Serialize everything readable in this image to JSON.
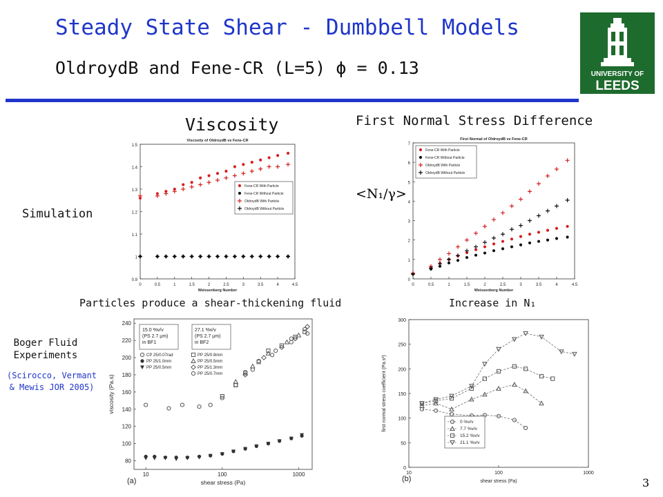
{
  "slide": {
    "title": "Steady State Shear - Dumbbell Models",
    "subtitle": "OldroydB and Fene-CR (L=5) ϕ = 0.13",
    "viscosity_label": "Viscosity",
    "n1_label": "First Normal Stress Difference",
    "simulation_label": "Simulation",
    "n1_axis_label": "<N₁/γ>",
    "shear_thickening_note": "Particles produce a shear-thickening fluid",
    "increase_note": "Increase in N₁",
    "boger_label": "Boger Fluid Experiments",
    "citation": "(Scirocco, Vermant & Mewis JOR 2005)",
    "slide_number": "3",
    "logo_text_1": "UNIVERSITY OF",
    "logo_text_2": "LEEDS"
  },
  "colors": {
    "title": "#1f35c9",
    "red": "#d42020",
    "black": "#111111",
    "logo": "#1e6b2e"
  },
  "chart_data": [
    {
      "id": "viscosity-sim",
      "type": "scatter",
      "title": "Viscosity of OldroydB vs Fene-CR",
      "xlabel": "Weissenberg Number",
      "ylabel": "",
      "xlim": [
        0,
        4.5
      ],
      "ylim": [
        0.9,
        1.5
      ],
      "xticks": [
        "0",
        "0.5",
        "1",
        "1.5",
        "2",
        "2.5",
        "3",
        "3.5",
        "4",
        "4.5"
      ],
      "yticks": [
        "0.9",
        "1",
        "1.1",
        "1.2",
        "1.3",
        "1.4",
        "1.5"
      ],
      "legend_position": "right",
      "x": [
        0,
        0.5,
        0.75,
        1.0,
        1.25,
        1.5,
        1.75,
        2.0,
        2.25,
        2.5,
        2.75,
        3.0,
        3.25,
        3.5,
        3.75,
        4.0,
        4.3
      ],
      "series": [
        {
          "name": "Fene-CR With Particle",
          "marker": "dot",
          "color": "#d42020",
          "values": [
            1.26,
            1.28,
            1.29,
            1.3,
            1.32,
            1.33,
            1.35,
            1.36,
            1.37,
            1.38,
            1.4,
            1.41,
            1.42,
            1.43,
            1.44,
            1.45,
            1.46
          ]
        },
        {
          "name": "Fene-CR Without Particle",
          "marker": "dot",
          "color": "#111111",
          "values": [
            1.0,
            1.0,
            1.0,
            1.0,
            1.0,
            1.0,
            1.0,
            1.0,
            1.0,
            1.0,
            1.0,
            1.0,
            1.0,
            1.0,
            1.0,
            1.0,
            1.0
          ]
        },
        {
          "name": "OldroydB With Particle",
          "marker": "plus",
          "color": "#d42020",
          "values": [
            1.27,
            1.27,
            1.28,
            1.29,
            1.3,
            1.31,
            1.32,
            1.33,
            1.34,
            1.35,
            1.36,
            1.37,
            1.38,
            1.39,
            1.4,
            1.4,
            1.41
          ]
        },
        {
          "name": "OldroydB Without Particle",
          "marker": "plus",
          "color": "#111111",
          "values": [
            1.0,
            1.0,
            1.0,
            1.0,
            1.0,
            1.0,
            1.0,
            1.0,
            1.0,
            1.0,
            1.0,
            1.0,
            1.0,
            1.0,
            1.0,
            1.0,
            1.0
          ]
        }
      ]
    },
    {
      "id": "n1-sim",
      "type": "scatter",
      "title": "First Normal of OldroydB vs Fene-CR",
      "xlabel": "Weissenberg Number",
      "ylabel": "",
      "xlim": [
        0,
        4.5
      ],
      "ylim": [
        0,
        7
      ],
      "xticks": [
        "0",
        "0.5",
        "1",
        "1.5",
        "2",
        "2.5",
        "3",
        "3.5",
        "4",
        "4.5"
      ],
      "yticks": [
        "0",
        "1",
        "2",
        "3",
        "4",
        "5",
        "6",
        "7"
      ],
      "legend_position": "top-left",
      "x": [
        0,
        0.5,
        0.75,
        1.0,
        1.25,
        1.5,
        1.75,
        2.0,
        2.25,
        2.5,
        2.75,
        3.0,
        3.25,
        3.5,
        3.75,
        4.0,
        4.3
      ],
      "series": [
        {
          "name": "Fene-CR With Particle",
          "marker": "dot",
          "color": "#d42020",
          "values": [
            0.25,
            0.6,
            0.8,
            1.0,
            1.18,
            1.35,
            1.5,
            1.65,
            1.8,
            1.93,
            2.05,
            2.18,
            2.3,
            2.4,
            2.5,
            2.6,
            2.7
          ]
        },
        {
          "name": "Fene-CR Without Particle",
          "marker": "dot",
          "color": "#111111",
          "values": [
            0.25,
            0.5,
            0.65,
            0.82,
            0.95,
            1.1,
            1.22,
            1.33,
            1.45,
            1.55,
            1.65,
            1.75,
            1.85,
            1.93,
            2.0,
            2.08,
            2.15
          ]
        },
        {
          "name": "OldroydB With Particle",
          "marker": "plus",
          "color": "#d42020",
          "values": [
            0.3,
            0.65,
            1.0,
            1.3,
            1.65,
            2.0,
            2.35,
            2.7,
            3.05,
            3.4,
            3.75,
            4.1,
            4.5,
            4.9,
            5.3,
            5.65,
            6.1
          ]
        },
        {
          "name": "OldroydB Without Particle",
          "marker": "plus",
          "color": "#111111",
          "values": [
            0.25,
            0.55,
            0.78,
            1.0,
            1.2,
            1.45,
            1.65,
            1.88,
            2.1,
            2.3,
            2.55,
            2.75,
            3.0,
            3.25,
            3.5,
            3.75,
            4.05
          ]
        }
      ]
    },
    {
      "id": "viscosity-exp",
      "type": "scatter",
      "panel": "(a)",
      "xlabel": "shear stress (Pa)",
      "ylabel": "viscosity (Pa.s)",
      "xscale": "log",
      "xlim": [
        7,
        1500
      ],
      "ylim": [
        70,
        245
      ],
      "xticks": [
        "10",
        "100",
        "1000"
      ],
      "yticks": [
        "80",
        "100",
        "120",
        "140",
        "160",
        "180",
        "200",
        "220",
        "240"
      ],
      "legend_box_1": [
        "15.0 %v/v",
        "(PS 2.7 μm)",
        "in BF1"
      ],
      "legend_box_2": [
        "27.1 %v/v",
        "(PS 2.7 μm)",
        "in BF2"
      ],
      "legend_position": "top-left",
      "series": [
        {
          "name": "CP 25/0.07rad",
          "marker": "circle-open",
          "x": [
            10,
            20,
            30,
            50,
            70,
            100,
            150,
            200,
            300,
            500,
            800,
            1200
          ],
          "values": [
            145,
            141,
            145,
            143,
            145,
            153,
            168,
            183,
            196,
            208,
            222,
            233
          ]
        },
        {
          "name": "PP 25/1.0mm",
          "marker": "circle-filled",
          "x": [
            10,
            13,
            18,
            25,
            35,
            50,
            70,
            100,
            140,
            200,
            280,
            400,
            560,
            800,
            1100
          ],
          "values": [
            85,
            85,
            84,
            84,
            84,
            85,
            86,
            88,
            91,
            94,
            97,
            100,
            103,
            106,
            109
          ]
        },
        {
          "name": "PP 25/0.5mm",
          "marker": "triangle-down",
          "x": [
            10,
            13,
            18,
            25,
            35,
            50,
            70,
            100,
            140,
            200,
            280,
            400,
            560,
            800,
            1100
          ],
          "values": [
            83,
            83,
            83,
            82,
            83,
            84,
            86,
            88,
            91,
            94,
            97,
            100,
            103,
            106,
            110
          ]
        },
        {
          "name": "PP 25/0.9mm",
          "marker": "square-open",
          "x": [
            100,
            150,
            200,
            300,
            400,
            600,
            900,
            1200
          ],
          "values": [
            155,
            168,
            182,
            195,
            208,
            214,
            224,
            230
          ]
        },
        {
          "name": "PP 25/0.5mm",
          "marker": "triangle-open",
          "x": [
            150,
            250,
            400,
            700,
            1000
          ],
          "values": [
            172,
            190,
            205,
            218,
            226
          ]
        },
        {
          "name": "PP 25/1.3mm",
          "marker": "diamond-open",
          "x": [
            200,
            350,
            600,
            900,
            1300
          ],
          "values": [
            180,
            200,
            212,
            222,
            236
          ]
        },
        {
          "name": "PP 25/0.7mm",
          "marker": "circle-open-2",
          "x": [
            250,
            450,
            800,
            1300
          ],
          "values": [
            186,
            203,
            218,
            228
          ]
        }
      ]
    },
    {
      "id": "n1-exp",
      "type": "line",
      "panel": "(b)",
      "xlabel": "shear stress (Pa)",
      "ylabel": "first normal stress coefficient (Pa.s²)",
      "xscale": "log",
      "xlim": [
        10,
        1000
      ],
      "ylim": [
        0,
        300
      ],
      "xticks": [
        "10",
        "100",
        "1000"
      ],
      "yticks": [
        "0",
        "50",
        "100",
        "150",
        "200",
        "250",
        "300"
      ],
      "legend_position": "bottom-center",
      "series": [
        {
          "name": "0 %v/v",
          "marker": "circle-open",
          "x": [
            14,
            20,
            30,
            50,
            70,
            100,
            150,
            200
          ],
          "values": [
            118,
            115,
            108,
            105,
            106,
            104,
            96,
            80
          ]
        },
        {
          "name": "7.7 %v/v",
          "marker": "triangle-open",
          "x": [
            14,
            20,
            30,
            50,
            70,
            100,
            150,
            200,
            300
          ],
          "values": [
            125,
            130,
            118,
            138,
            148,
            160,
            168,
            155,
            130
          ]
        },
        {
          "name": "15.2 %v/v",
          "marker": "square-open",
          "x": [
            14,
            20,
            30,
            50,
            70,
            100,
            150,
            200,
            300,
            400
          ],
          "values": [
            130,
            135,
            140,
            160,
            180,
            195,
            205,
            200,
            185,
            180
          ]
        },
        {
          "name": "21.1 %v/v",
          "marker": "triangle-down-open",
          "x": [
            14,
            20,
            30,
            50,
            70,
            100,
            150,
            200,
            300,
            500,
            700
          ],
          "values": [
            130,
            138,
            145,
            165,
            210,
            240,
            260,
            272,
            265,
            235,
            230
          ]
        }
      ]
    }
  ]
}
